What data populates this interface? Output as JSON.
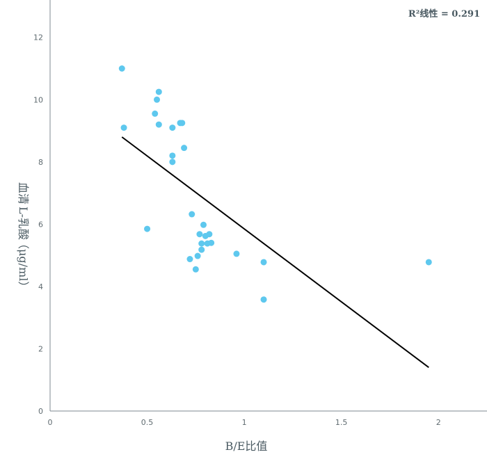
{
  "chart_data": {
    "type": "scatter",
    "xlabel": "B/E比值",
    "ylabel_parts": [
      "血清",
      "L-乳酸",
      "（μg/ml）"
    ],
    "annotation": "R²线性 = 0.291",
    "xlim": [
      0,
      2.25
    ],
    "ylim": [
      0,
      13.2
    ],
    "xticks": [
      0,
      0.5,
      1,
      1.5,
      2
    ],
    "xtick_labels": [
      "0",
      "0.5",
      "1",
      "1.5",
      "2"
    ],
    "yticks": [
      0,
      2,
      4,
      6,
      8,
      10,
      12
    ],
    "ytick_labels": [
      "0",
      "2",
      "4",
      "6",
      "8",
      "10",
      "12"
    ],
    "grid": false,
    "points": [
      {
        "x": 0.37,
        "y": 11.0
      },
      {
        "x": 0.38,
        "y": 9.1
      },
      {
        "x": 0.5,
        "y": 5.85
      },
      {
        "x": 0.55,
        "y": 10.0
      },
      {
        "x": 0.56,
        "y": 10.25
      },
      {
        "x": 0.54,
        "y": 9.55
      },
      {
        "x": 0.56,
        "y": 9.2
      },
      {
        "x": 0.63,
        "y": 9.1
      },
      {
        "x": 0.67,
        "y": 9.25
      },
      {
        "x": 0.68,
        "y": 9.25
      },
      {
        "x": 0.69,
        "y": 8.45
      },
      {
        "x": 0.63,
        "y": 8.2
      },
      {
        "x": 0.63,
        "y": 8.0
      },
      {
        "x": 0.73,
        "y": 6.32
      },
      {
        "x": 0.79,
        "y": 5.98
      },
      {
        "x": 0.77,
        "y": 5.68
      },
      {
        "x": 0.8,
        "y": 5.62
      },
      {
        "x": 0.82,
        "y": 5.68
      },
      {
        "x": 0.78,
        "y": 5.38
      },
      {
        "x": 0.81,
        "y": 5.38
      },
      {
        "x": 0.83,
        "y": 5.4
      },
      {
        "x": 0.78,
        "y": 5.18
      },
      {
        "x": 0.96,
        "y": 5.05
      },
      {
        "x": 0.76,
        "y": 4.98
      },
      {
        "x": 0.72,
        "y": 4.88
      },
      {
        "x": 1.1,
        "y": 4.78
      },
      {
        "x": 0.75,
        "y": 4.55
      },
      {
        "x": 1.1,
        "y": 3.58
      },
      {
        "x": 1.95,
        "y": 4.78
      }
    ],
    "fit_line": {
      "x": [
        0.37,
        1.95
      ],
      "y": [
        8.8,
        1.4
      ]
    },
    "colors": {
      "point": "#5ec8ee",
      "line": "#000000",
      "axis": "#7c8a90",
      "text": "#4a5a62"
    }
  }
}
